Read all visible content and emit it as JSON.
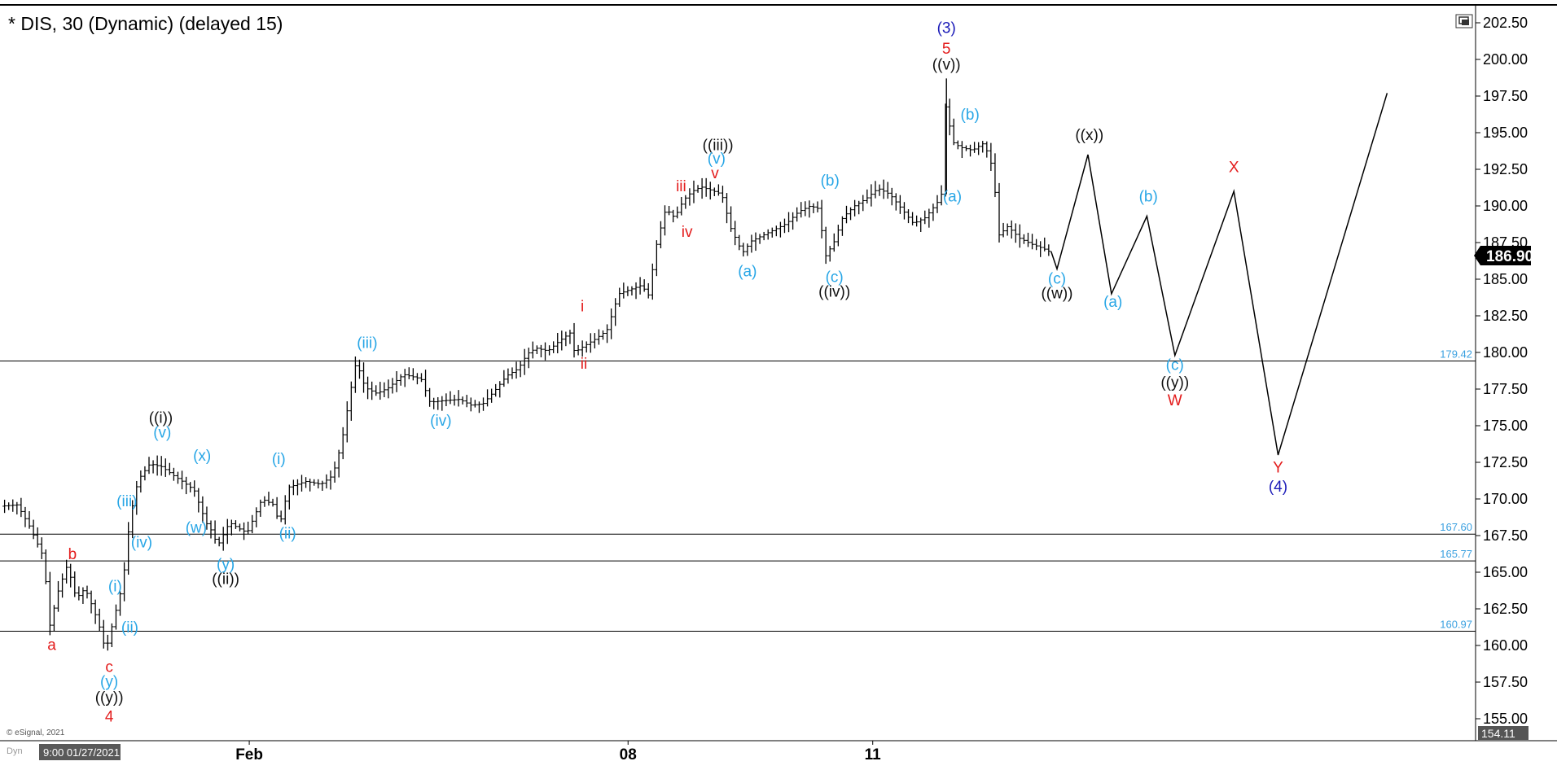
{
  "chart_data": {
    "type": "ohlc",
    "title": "* DIS, 30 (Dynamic) (delayed 15)",
    "symbol": "DIS",
    "interval": "30",
    "ylim": [
      153.5,
      203.5
    ],
    "y_ticks": [
      "202.50",
      "200.00",
      "197.50",
      "195.00",
      "192.50",
      "190.00",
      "187.50",
      "185.00",
      "182.50",
      "180.00",
      "177.50",
      "175.00",
      "172.50",
      "170.00",
      "167.50",
      "165.00",
      "162.50",
      "160.00",
      "157.50",
      "155.00"
    ],
    "x_tick_labels": [
      {
        "label": "Feb",
        "t": 0.168
      },
      {
        "label": "08",
        "t": 0.425
      },
      {
        "label": "11",
        "t": 0.591
      }
    ],
    "last_price": "186.90",
    "lowest_visible": "154.11",
    "footer": {
      "copyright": "© eSignal, 2021",
      "dyn": "Dyn",
      "cursor_time": "9:00 01/27/2021"
    },
    "levels": [
      {
        "value": 179.42,
        "label": "179.42"
      },
      {
        "value": 167.6,
        "label": "167.60"
      },
      {
        "value": 165.77,
        "label": "165.77"
      },
      {
        "value": 160.97,
        "label": "160.97"
      }
    ],
    "colors": {
      "bars": "#000000",
      "red": "#e31c1c",
      "blue": "#28a6e6",
      "navy": "#1b1bb8",
      "black": "#111111",
      "level_text": "#3aa0e0"
    },
    "price_path": [
      [
        0.0,
        169.5
      ],
      [
        0.012,
        169.6
      ],
      [
        0.02,
        168.2
      ],
      [
        0.03,
        166.0
      ],
      [
        0.034,
        161.3
      ],
      [
        0.04,
        163.8
      ],
      [
        0.046,
        165.5
      ],
      [
        0.052,
        163.2
      ],
      [
        0.058,
        163.9
      ],
      [
        0.064,
        162.4
      ],
      [
        0.068,
        161.2
      ],
      [
        0.072,
        159.6
      ],
      [
        0.078,
        162.0
      ],
      [
        0.082,
        163.6
      ],
      [
        0.086,
        166.0
      ],
      [
        0.088,
        168.5
      ],
      [
        0.094,
        171.3
      ],
      [
        0.102,
        172.4
      ],
      [
        0.11,
        172.2
      ],
      [
        0.118,
        171.6
      ],
      [
        0.124,
        171.2
      ],
      [
        0.132,
        170.6
      ],
      [
        0.14,
        168.4
      ],
      [
        0.144,
        167.8
      ],
      [
        0.148,
        166.8
      ],
      [
        0.156,
        168.4
      ],
      [
        0.162,
        168.0
      ],
      [
        0.168,
        167.7
      ],
      [
        0.178,
        170.0
      ],
      [
        0.186,
        169.6
      ],
      [
        0.19,
        168.2
      ],
      [
        0.196,
        170.8
      ],
      [
        0.208,
        171.2
      ],
      [
        0.218,
        171.0
      ],
      [
        0.226,
        171.6
      ],
      [
        0.232,
        173.8
      ],
      [
        0.238,
        177.3
      ],
      [
        0.242,
        179.4
      ],
      [
        0.248,
        177.6
      ],
      [
        0.256,
        177.2
      ],
      [
        0.264,
        177.6
      ],
      [
        0.274,
        178.5
      ],
      [
        0.286,
        178.2
      ],
      [
        0.292,
        176.6
      ],
      [
        0.3,
        176.7
      ],
      [
        0.312,
        176.8
      ],
      [
        0.32,
        176.4
      ],
      [
        0.328,
        176.5
      ],
      [
        0.336,
        177.4
      ],
      [
        0.344,
        178.4
      ],
      [
        0.352,
        178.9
      ],
      [
        0.358,
        179.9
      ],
      [
        0.364,
        180.3
      ],
      [
        0.372,
        180.1
      ],
      [
        0.38,
        180.8
      ],
      [
        0.388,
        181.4
      ],
      [
        0.39,
        180.0
      ],
      [
        0.396,
        180.4
      ],
      [
        0.404,
        180.9
      ],
      [
        0.412,
        181.5
      ],
      [
        0.42,
        184.0
      ],
      [
        0.428,
        184.3
      ],
      [
        0.436,
        184.6
      ],
      [
        0.44,
        183.8
      ],
      [
        0.446,
        187.5
      ],
      [
        0.452,
        189.8
      ],
      [
        0.458,
        189.2
      ],
      [
        0.464,
        190.4
      ],
      [
        0.47,
        191.0
      ],
      [
        0.476,
        191.3
      ],
      [
        0.482,
        191.1
      ],
      [
        0.49,
        190.8
      ],
      [
        0.496,
        188.5
      ],
      [
        0.504,
        186.8
      ],
      [
        0.51,
        187.6
      ],
      [
        0.518,
        188.0
      ],
      [
        0.526,
        188.4
      ],
      [
        0.534,
        188.8
      ],
      [
        0.542,
        189.6
      ],
      [
        0.55,
        190.0
      ],
      [
        0.556,
        189.8
      ],
      [
        0.56,
        186.5
      ],
      [
        0.566,
        187.5
      ],
      [
        0.572,
        189.2
      ],
      [
        0.58,
        190.0
      ],
      [
        0.588,
        190.5
      ],
      [
        0.596,
        191.2
      ],
      [
        0.604,
        190.8
      ],
      [
        0.612,
        189.8
      ],
      [
        0.62,
        188.8
      ],
      [
        0.628,
        189.2
      ],
      [
        0.636,
        190.2
      ],
      [
        0.64,
        191.0
      ],
      [
        0.642,
        197.4
      ],
      [
        0.646,
        194.4
      ],
      [
        0.652,
        194.0
      ],
      [
        0.66,
        193.8
      ],
      [
        0.668,
        194.3
      ],
      [
        0.674,
        192.5
      ],
      [
        0.678,
        188.0
      ],
      [
        0.684,
        188.6
      ],
      [
        0.692,
        187.8
      ],
      [
        0.7,
        187.4
      ],
      [
        0.708,
        187.1
      ],
      [
        0.712,
        186.9
      ]
    ],
    "projection_path": [
      [
        0.712,
        186.9
      ],
      [
        0.716,
        185.7
      ],
      [
        0.737,
        193.5
      ],
      [
        0.753,
        184.0
      ],
      [
        0.777,
        189.3
      ],
      [
        0.796,
        179.8
      ],
      [
        0.836,
        191.0
      ],
      [
        0.866,
        173.0
      ],
      [
        0.94,
        197.7
      ]
    ],
    "wave_labels": [
      {
        "text": "(3)",
        "t": 0.641,
        "y": 201.8,
        "color": "navy"
      },
      {
        "text": "5",
        "t": 0.641,
        "y": 200.4,
        "color": "red"
      },
      {
        "text": "((v))",
        "t": 0.641,
        "y": 199.3,
        "color": "black"
      },
      {
        "text": "(b)",
        "t": 0.657,
        "y": 195.9,
        "color": "blue"
      },
      {
        "text": "(a)",
        "t": 0.645,
        "y": 190.3,
        "color": "blue"
      },
      {
        "text": "((x))",
        "t": 0.738,
        "y": 194.5,
        "color": "black"
      },
      {
        "text": "(b)",
        "t": 0.778,
        "y": 190.3,
        "color": "blue"
      },
      {
        "text": "X",
        "t": 0.836,
        "y": 192.3,
        "color": "red"
      },
      {
        "text": "(c)",
        "t": 0.716,
        "y": 184.7,
        "color": "blue"
      },
      {
        "text": "((w))",
        "t": 0.716,
        "y": 183.7,
        "color": "black"
      },
      {
        "text": "(a)",
        "t": 0.754,
        "y": 183.1,
        "color": "blue"
      },
      {
        "text": "(c)",
        "t": 0.796,
        "y": 178.8,
        "color": "blue"
      },
      {
        "text": "((y))",
        "t": 0.796,
        "y": 177.6,
        "color": "black"
      },
      {
        "text": "W",
        "t": 0.796,
        "y": 176.4,
        "color": "red"
      },
      {
        "text": "Y",
        "t": 0.866,
        "y": 171.8,
        "color": "red"
      },
      {
        "text": "(4)",
        "t": 0.866,
        "y": 170.5,
        "color": "navy"
      },
      {
        "text": "((iii))",
        "t": 0.486,
        "y": 193.8,
        "color": "black"
      },
      {
        "text": "(v)",
        "t": 0.485,
        "y": 192.9,
        "color": "blue"
      },
      {
        "text": "v",
        "t": 0.484,
        "y": 191.9,
        "color": "red"
      },
      {
        "text": "iii",
        "t": 0.461,
        "y": 191.0,
        "color": "red"
      },
      {
        "text": "iv",
        "t": 0.465,
        "y": 187.9,
        "color": "red"
      },
      {
        "text": "(b)",
        "t": 0.562,
        "y": 191.4,
        "color": "blue"
      },
      {
        "text": "(a)",
        "t": 0.506,
        "y": 185.2,
        "color": "blue"
      },
      {
        "text": "(c)",
        "t": 0.565,
        "y": 184.8,
        "color": "blue"
      },
      {
        "text": "((iv))",
        "t": 0.565,
        "y": 183.8,
        "color": "black"
      },
      {
        "text": "i",
        "t": 0.394,
        "y": 182.8,
        "color": "red"
      },
      {
        "text": "ii",
        "t": 0.395,
        "y": 178.9,
        "color": "red"
      },
      {
        "text": "(iii)",
        "t": 0.248,
        "y": 180.3,
        "color": "blue"
      },
      {
        "text": "(iv)",
        "t": 0.298,
        "y": 175.0,
        "color": "blue"
      },
      {
        "text": "(i)",
        "t": 0.188,
        "y": 172.4,
        "color": "blue"
      },
      {
        "text": "(ii)",
        "t": 0.194,
        "y": 167.3,
        "color": "blue"
      },
      {
        "text": "((i))",
        "t": 0.108,
        "y": 175.2,
        "color": "black"
      },
      {
        "text": "(v)",
        "t": 0.109,
        "y": 174.2,
        "color": "blue"
      },
      {
        "text": "(x)",
        "t": 0.136,
        "y": 172.6,
        "color": "blue"
      },
      {
        "text": "(w)",
        "t": 0.132,
        "y": 167.7,
        "color": "blue"
      },
      {
        "text": "(iii)",
        "t": 0.085,
        "y": 169.5,
        "color": "blue"
      },
      {
        "text": "(iv)",
        "t": 0.095,
        "y": 166.7,
        "color": "blue"
      },
      {
        "text": "(y)",
        "t": 0.152,
        "y": 165.2,
        "color": "blue"
      },
      {
        "text": "((ii))",
        "t": 0.152,
        "y": 164.2,
        "color": "black"
      },
      {
        "text": "b",
        "t": 0.048,
        "y": 165.9,
        "color": "red"
      },
      {
        "text": "(i)",
        "t": 0.077,
        "y": 163.7,
        "color": "blue"
      },
      {
        "text": "(ii)",
        "t": 0.087,
        "y": 160.9,
        "color": "blue"
      },
      {
        "text": "a",
        "t": 0.034,
        "y": 159.7,
        "color": "red"
      },
      {
        "text": "c",
        "t": 0.073,
        "y": 158.2,
        "color": "red"
      },
      {
        "text": "(y)",
        "t": 0.073,
        "y": 157.2,
        "color": "blue"
      },
      {
        "text": "((y))",
        "t": 0.073,
        "y": 156.1,
        "color": "black"
      },
      {
        "text": "4",
        "t": 0.073,
        "y": 154.8,
        "color": "red"
      }
    ]
  }
}
